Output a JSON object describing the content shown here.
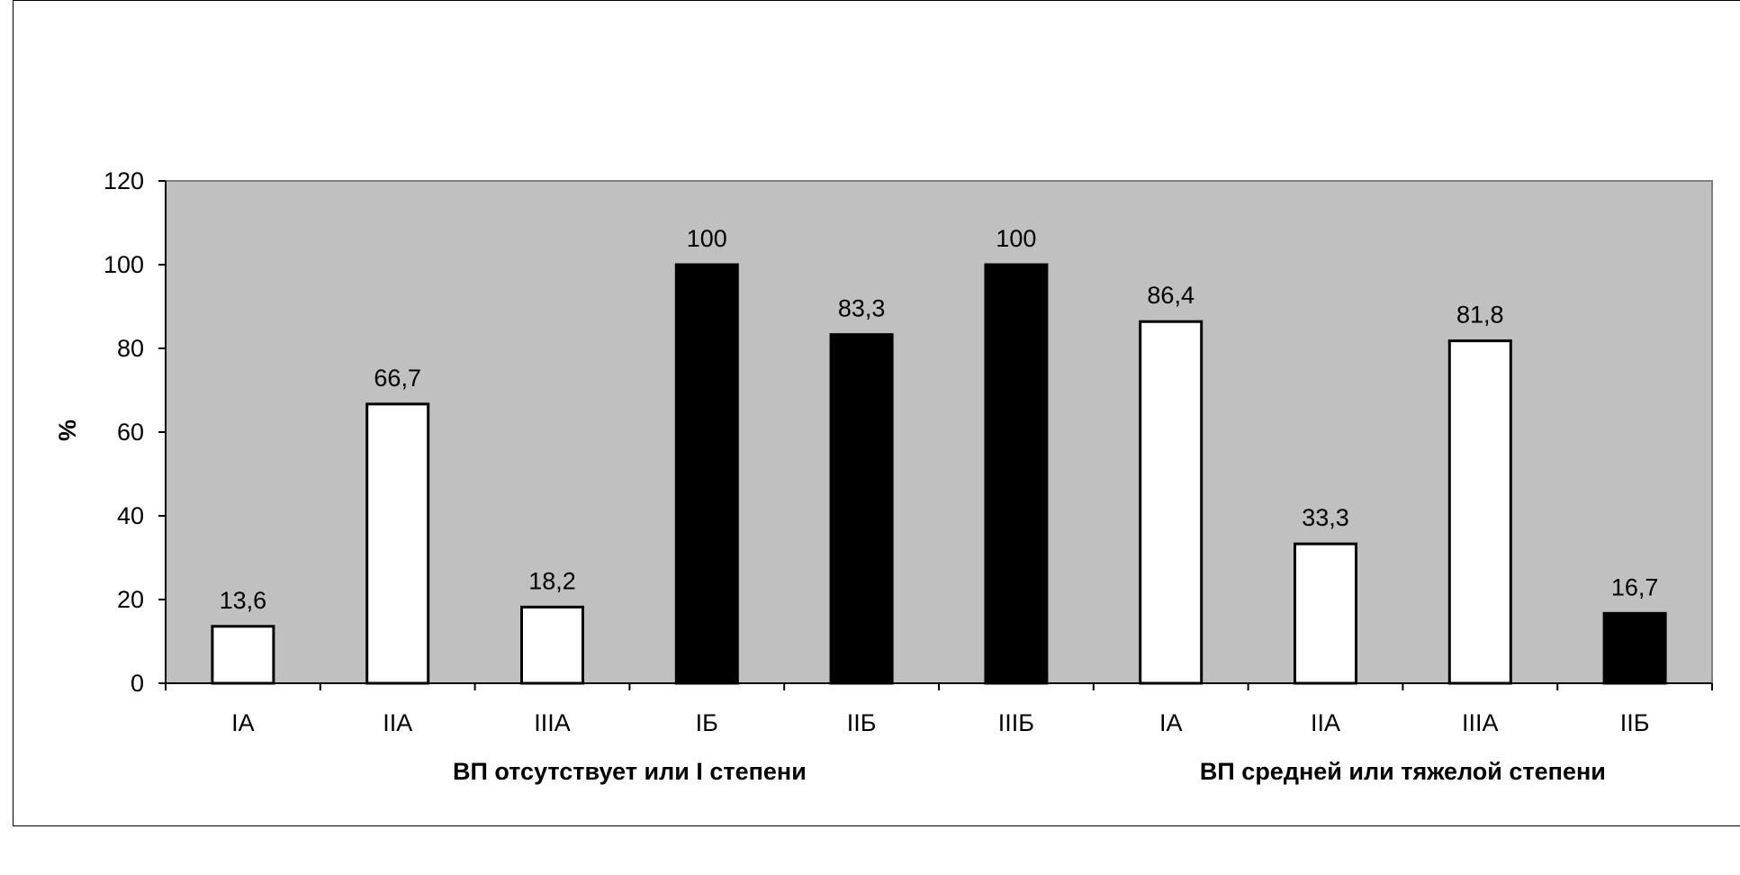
{
  "chart_data": {
    "type": "bar",
    "ylabel": "%",
    "ylim": [
      0,
      120
    ],
    "yticks": [
      "0",
      "20",
      "40",
      "60",
      "80",
      "100",
      "120"
    ],
    "categories": [
      "IA",
      "IIA",
      "IIIA",
      "IБ",
      "IIБ",
      "IIIБ",
      "IA",
      "IIA",
      "IIIA",
      "IIБ"
    ],
    "values": [
      13.6,
      66.7,
      18.2,
      100,
      83.3,
      100,
      86.4,
      33.3,
      81.8,
      16.7
    ],
    "value_labels": [
      "13,6",
      "66,7",
      "18,2",
      "100",
      "83,3",
      "100",
      "86,4",
      "33,3",
      "81,8",
      "16,7"
    ],
    "bar_fills": [
      "white",
      "white",
      "white",
      "black",
      "black",
      "black",
      "white",
      "white",
      "white",
      "black"
    ],
    "groups": [
      {
        "label": "ВП отсутствует или I степени",
        "span": [
          0,
          5
        ]
      },
      {
        "label": "ВП средней или тяжелой степени",
        "span": [
          6,
          9
        ]
      }
    ],
    "colors": {
      "plot_background": "#c0c0c0",
      "bar_white": "#ffffff",
      "bar_black": "#000000"
    },
    "grid": false,
    "legend": "none"
  }
}
